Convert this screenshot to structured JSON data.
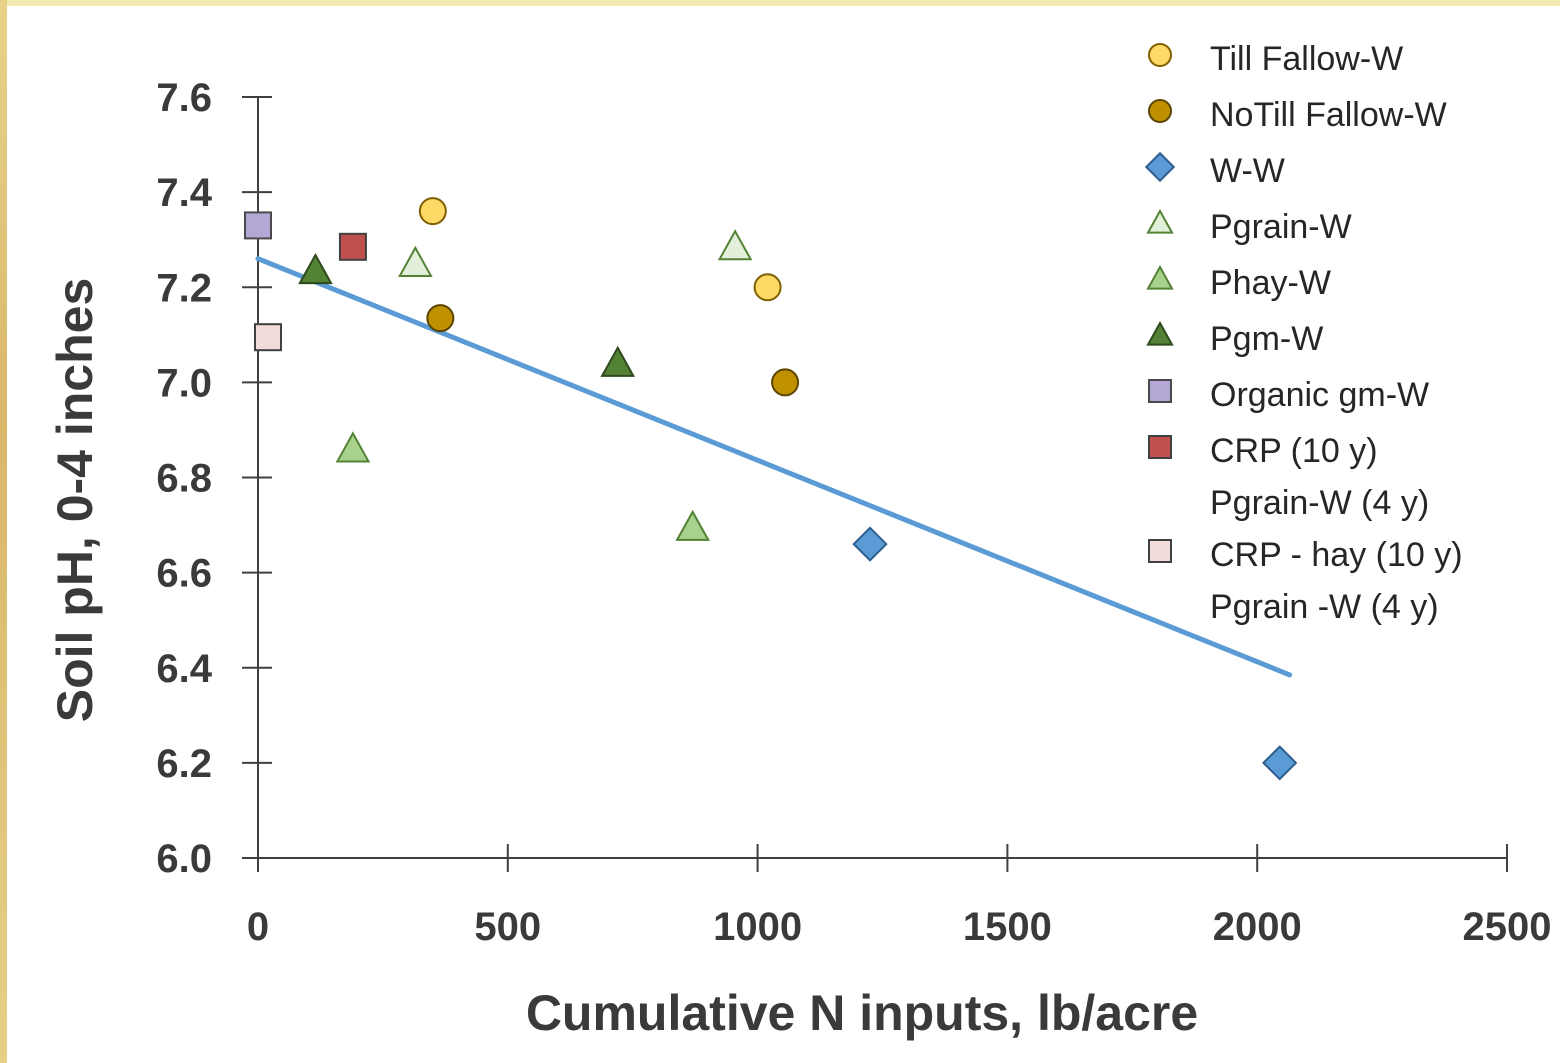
{
  "chart_data": {
    "type": "scatter",
    "xlabel": "Cumulative N inputs, lb/acre",
    "ylabel": "Soil pH, 0-4 inches",
    "xlim": [
      0,
      2500
    ],
    "ylim": [
      6.0,
      7.6
    ],
    "xticks": [
      "0",
      "500",
      "1000",
      "1500",
      "2000",
      "2500"
    ],
    "yticks": [
      "6.0",
      "6.2",
      "6.4",
      "6.6",
      "6.8",
      "7.0",
      "7.2",
      "7.4",
      "7.6"
    ],
    "grid": false,
    "legend_position": "top-right",
    "series": [
      {
        "name": "Till Fallow-W",
        "marker": "circle",
        "color": "#ffd966",
        "stroke": "#7f6000",
        "points": [
          [
            350,
            7.36
          ],
          [
            1020,
            7.2
          ]
        ]
      },
      {
        "name": "NoTill Fallow-W",
        "marker": "circle",
        "color": "#bf9000",
        "stroke": "#5c4500",
        "points": [
          [
            365,
            7.135
          ],
          [
            1055,
            7.0
          ]
        ]
      },
      {
        "name": "W-W",
        "marker": "diamond",
        "color": "#5b9bd5",
        "stroke": "#2e5f8e",
        "points": [
          [
            1225,
            6.66
          ],
          [
            2045,
            6.2
          ]
        ]
      },
      {
        "name": "Pgrain-W",
        "marker": "triangle",
        "color": "#e2efda",
        "stroke": "#548235",
        "points": [
          [
            315,
            7.25
          ],
          [
            955,
            7.285
          ]
        ]
      },
      {
        "name": "Phay-W",
        "marker": "triangle",
        "color": "#a9d18e",
        "stroke": "#548235",
        "points": [
          [
            190,
            6.86
          ],
          [
            870,
            6.695
          ]
        ]
      },
      {
        "name": "Pgm-W",
        "marker": "triangle",
        "color": "#548235",
        "stroke": "#2e4a1c",
        "points": [
          [
            115,
            7.235
          ],
          [
            720,
            7.04
          ]
        ]
      },
      {
        "name": "Organic gm-W",
        "marker": "square",
        "color": "#b4a7d6",
        "stroke": "#4a4a4a",
        "points": [
          [
            0,
            7.33
          ]
        ]
      },
      {
        "name": "CRP (10 y)\nPgrain-W (4 y)",
        "marker": "square",
        "color": "#c0504d",
        "stroke": "#404040",
        "points": [
          [
            190,
            7.285
          ]
        ]
      },
      {
        "name": "CRP - hay (10 y)\nPgrain -W (4 y)",
        "marker": "square",
        "color": "#f2dcdb",
        "stroke": "#404040",
        "points": [
          [
            20,
            7.095
          ]
        ]
      }
    ],
    "trendline": {
      "color": "#5b9bd5",
      "points": [
        [
          0,
          7.26
        ],
        [
          2065,
          6.385
        ]
      ]
    }
  }
}
